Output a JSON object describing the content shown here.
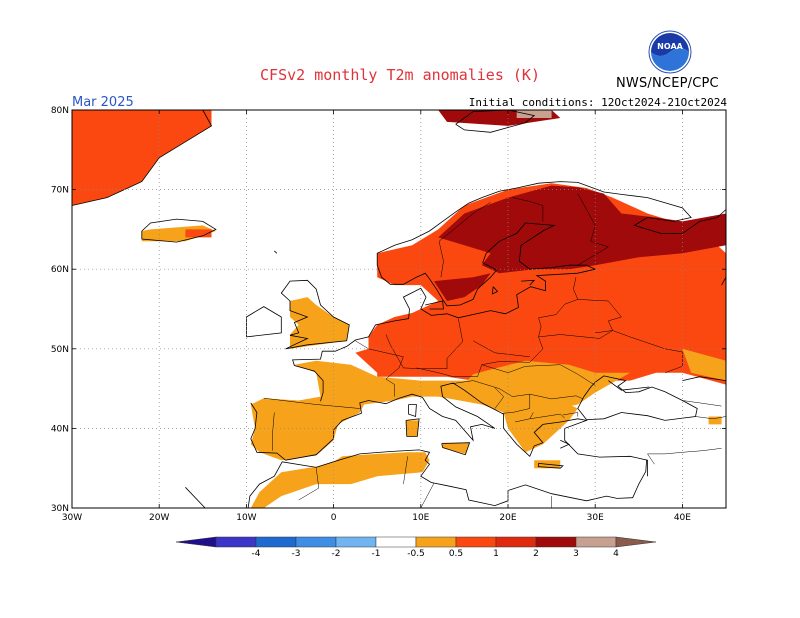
{
  "title": "CFSv2 monthly T2m anomalies (K)",
  "valid_month": "Mar 2025",
  "initial_conditions": "Initial conditions: 12Oct2024-21Oct2024",
  "agency": "NWS/NCEP/CPC",
  "logo_text": "NOAA",
  "map": {
    "lon_range": [
      -30,
      45
    ],
    "lat_range": [
      30,
      80
    ],
    "lon_ticks": [
      {
        "v": -30,
        "label": "30W"
      },
      {
        "v": -20,
        "label": "20W"
      },
      {
        "v": -10,
        "label": "10W"
      },
      {
        "v": 0,
        "label": "0"
      },
      {
        "v": 10,
        "label": "10E"
      },
      {
        "v": 20,
        "label": "20E"
      },
      {
        "v": 30,
        "label": "30E"
      },
      {
        "v": 40,
        "label": "40E"
      }
    ],
    "lat_ticks": [
      {
        "v": 30,
        "label": "30N"
      },
      {
        "v": 40,
        "label": "40N"
      },
      {
        "v": 50,
        "label": "50N"
      },
      {
        "v": 60,
        "label": "60N"
      },
      {
        "v": 70,
        "label": "70N"
      },
      {
        "v": 80,
        "label": "80N"
      }
    ],
    "grid": "dotted"
  },
  "colorbar": {
    "labels": [
      "-4",
      "-3",
      "-2",
      "-1",
      "-0.5",
      "0.5",
      "1",
      "2",
      "3",
      "4"
    ],
    "colors": [
      "#1f0f8c",
      "#3b36c8",
      "#1f6ad0",
      "#3e8ee6",
      "#70b4f2",
      "#ffffff",
      "#f7a21b",
      "#fb4810",
      "#e02a0e",
      "#a00a0a",
      "#c7a090",
      "#8a5a4a"
    ]
  },
  "anomaly_regions": [
    {
      "level": "1-2",
      "color": "#fb4810",
      "area": "Greenland east coast",
      "polygon": [
        [
          -30,
          80
        ],
        [
          -14,
          80
        ],
        [
          -14,
          78
        ],
        [
          -17,
          76
        ],
        [
          -20,
          74
        ],
        [
          -22,
          71
        ],
        [
          -26,
          69
        ],
        [
          -30,
          68
        ]
      ]
    },
    {
      "level": "0.5-1",
      "color": "#f7a21b",
      "area": "Iceland",
      "polygon": [
        [
          -21,
          65
        ],
        [
          -15,
          65.5
        ],
        [
          -13.5,
          64.8
        ],
        [
          -17,
          63.5
        ],
        [
          -22,
          63.5
        ],
        [
          -22,
          64.8
        ]
      ]
    },
    {
      "level": "1-2",
      "color": "#fb4810",
      "area": "Iceland east",
      "polygon": [
        [
          -17,
          65
        ],
        [
          -14,
          65
        ],
        [
          -14,
          64
        ],
        [
          -17,
          64
        ]
      ]
    },
    {
      "level": "2-3",
      "color": "#a00a0a",
      "area": "Svalbard",
      "polygon": [
        [
          12,
          80
        ],
        [
          25,
          80
        ],
        [
          26,
          79
        ],
        [
          20,
          78
        ],
        [
          13,
          78.5
        ]
      ]
    },
    {
      "level": "3-4",
      "color": "#c7a090",
      "area": "Svalbard east",
      "polygon": [
        [
          21,
          80
        ],
        [
          25,
          80
        ],
        [
          25,
          79
        ],
        [
          21,
          79
        ]
      ]
    },
    {
      "level": "0.5-1",
      "color": "#f7a21b",
      "area": "Iberia and France",
      "polygon": [
        [
          -9.5,
          43
        ],
        [
          -9,
          40
        ],
        [
          -9.5,
          38
        ],
        [
          -8.5,
          37
        ],
        [
          -6,
          36
        ],
        [
          -2,
          36.6
        ],
        [
          0,
          38.5
        ],
        [
          0.5,
          40.5
        ],
        [
          3,
          42
        ],
        [
          3.5,
          43
        ],
        [
          7,
          43.5
        ],
        [
          9,
          44
        ],
        [
          12,
          44
        ],
        [
          17,
          43
        ],
        [
          19.5,
          42
        ],
        [
          20,
          40
        ],
        [
          22,
          37
        ],
        [
          24,
          38
        ],
        [
          27,
          41
        ],
        [
          28,
          42.5
        ],
        [
          23,
          45
        ],
        [
          18,
          46
        ],
        [
          10,
          46
        ],
        [
          5,
          46.5
        ],
        [
          2,
          48
        ],
        [
          -2,
          48.5
        ],
        [
          -4.5,
          48
        ],
        [
          -2,
          47
        ],
        [
          -1.5,
          44
        ],
        [
          -4,
          43.5
        ],
        [
          -8,
          43.8
        ]
      ]
    },
    {
      "level": "0.5-1",
      "color": "#f7a21b",
      "area": "Britain",
      "polygon": [
        [
          -5,
          50
        ],
        [
          1.5,
          51
        ],
        [
          1.8,
          53
        ],
        [
          0,
          54
        ],
        [
          -2,
          55.5
        ],
        [
          -3,
          56.5
        ],
        [
          -5,
          56
        ],
        [
          -5,
          54
        ],
        [
          -4,
          53
        ],
        [
          -5,
          51.8
        ]
      ]
    },
    {
      "level": "0.5-1",
      "color": "#f7a21b",
      "area": "Sardinia Sicily",
      "polygon": [
        [
          8.3,
          41
        ],
        [
          9.8,
          41
        ],
        [
          9.6,
          39
        ],
        [
          8.4,
          39
        ]
      ]
    },
    {
      "level": "0.5-1",
      "color": "#f7a21b",
      "area": "Sicily",
      "polygon": [
        [
          12.5,
          38.2
        ],
        [
          15.6,
          38.2
        ],
        [
          15.2,
          36.8
        ],
        [
          12.5,
          37.5
        ]
      ]
    },
    {
      "level": "0.5-1",
      "color": "#f7a21b",
      "area": "Morocco Algeria coast",
      "polygon": [
        [
          -9.5,
          30
        ],
        [
          -8.5,
          32
        ],
        [
          -6,
          34.5
        ],
        [
          -2,
          35.2
        ],
        [
          0,
          35.8
        ],
        [
          1,
          36.5
        ],
        [
          5,
          36.8
        ],
        [
          8.5,
          37
        ],
        [
          10.5,
          37
        ],
        [
          11,
          36
        ],
        [
          10.2,
          34.5
        ],
        [
          5,
          34
        ],
        [
          2,
          33
        ],
        [
          -2,
          33
        ],
        [
          -6,
          31.5
        ],
        [
          -8,
          30
        ]
      ]
    },
    {
      "level": "1-2",
      "color": "#fb4810",
      "area": "Central and Eastern Europe",
      "polygon": [
        [
          4,
          51.5
        ],
        [
          4,
          50
        ],
        [
          2.5,
          49.5
        ],
        [
          5,
          47
        ],
        [
          5,
          46.5
        ],
        [
          10,
          46.5
        ],
        [
          13,
          46.5
        ],
        [
          16,
          46
        ],
        [
          18.5,
          46.2
        ],
        [
          21,
          45
        ],
        [
          25,
          44
        ],
        [
          29,
          46
        ],
        [
          34,
          46
        ],
        [
          37,
          47
        ],
        [
          40,
          47
        ],
        [
          45,
          45.5
        ],
        [
          45,
          62
        ],
        [
          42,
          65
        ],
        [
          36,
          67
        ],
        [
          32,
          69
        ],
        [
          29,
          70.2
        ],
        [
          25,
          70.8
        ],
        [
          20,
          70
        ],
        [
          15,
          68
        ],
        [
          12,
          65
        ],
        [
          9,
          63
        ],
        [
          5,
          62
        ],
        [
          5,
          59
        ],
        [
          7,
          58
        ],
        [
          10,
          58
        ],
        [
          12,
          56
        ],
        [
          10,
          55
        ],
        [
          9,
          54.5
        ],
        [
          7,
          54
        ],
        [
          5,
          53
        ]
      ]
    },
    {
      "level": "2-3",
      "color": "#a00a0a",
      "area": "Scandinavia Finland NW Russia",
      "polygon": [
        [
          12,
          64
        ],
        [
          15,
          67
        ],
        [
          20,
          69
        ],
        [
          25,
          70.5
        ],
        [
          28,
          70.3
        ],
        [
          31,
          69.5
        ],
        [
          33,
          67
        ],
        [
          37,
          66.5
        ],
        [
          40,
          66
        ],
        [
          45,
          67
        ],
        [
          45,
          63
        ],
        [
          40,
          62
        ],
        [
          35,
          61.5
        ],
        [
          30,
          60.5
        ],
        [
          27,
          60
        ],
        [
          23,
          60
        ],
        [
          19,
          59.5
        ],
        [
          17,
          60.5
        ],
        [
          18,
          62
        ],
        [
          15,
          63
        ]
      ]
    },
    {
      "level": "2-3",
      "color": "#a00a0a",
      "area": "South Sweden",
      "polygon": [
        [
          11.5,
          58.5
        ],
        [
          16,
          59
        ],
        [
          18,
          59.5
        ],
        [
          17,
          58
        ],
        [
          15,
          56.5
        ],
        [
          13,
          56
        ]
      ]
    },
    {
      "level": "0.5-1",
      "color": "#f7a21b",
      "area": "Balkans Hungary",
      "polygon": [
        [
          16,
          46.8
        ],
        [
          18,
          47.4
        ],
        [
          22,
          48.5
        ],
        [
          27,
          48
        ],
        [
          30,
          47
        ],
        [
          34,
          47
        ],
        [
          30,
          44.5
        ],
        [
          28,
          43
        ],
        [
          24,
          42
        ],
        [
          20,
          42
        ],
        [
          17,
          43
        ],
        [
          14.5,
          45
        ]
      ]
    },
    {
      "level": "0.5-1",
      "color": "#f7a21b",
      "area": "East Russia south",
      "polygon": [
        [
          40,
          50
        ],
        [
          45,
          48.5
        ],
        [
          45,
          46
        ],
        [
          41,
          47
        ]
      ]
    },
    {
      "level": "0.5-1",
      "color": "#f7a21b",
      "area": "Caucasus small",
      "polygon": [
        [
          43,
          41.5
        ],
        [
          44.5,
          41.5
        ],
        [
          44.5,
          40.5
        ],
        [
          43,
          40.5
        ]
      ]
    },
    {
      "level": "0.5-1",
      "color": "#f7a21b",
      "area": "Crete Greece islands",
      "polygon": [
        [
          23,
          36
        ],
        [
          26,
          36
        ],
        [
          26,
          35
        ],
        [
          23,
          35
        ]
      ]
    }
  ]
}
